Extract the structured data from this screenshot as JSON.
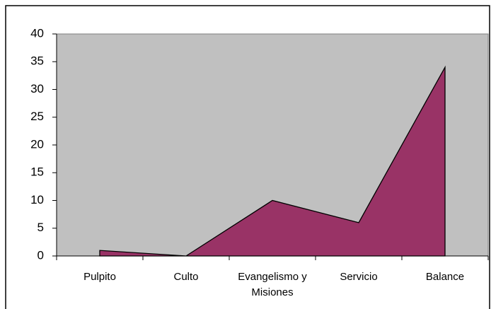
{
  "chart_data": {
    "type": "area",
    "categories": [
      "Pulpito",
      "Culto",
      "Evangelismo y Misiones",
      "Servicio",
      "Balance"
    ],
    "values": [
      1,
      0,
      10,
      6,
      34
    ],
    "color": "#993366",
    "plot_background": "#c0c0c0",
    "ylim": [
      0,
      40
    ],
    "yticks": [
      0,
      5,
      10,
      15,
      20,
      25,
      30,
      35,
      40
    ],
    "grid": false
  }
}
